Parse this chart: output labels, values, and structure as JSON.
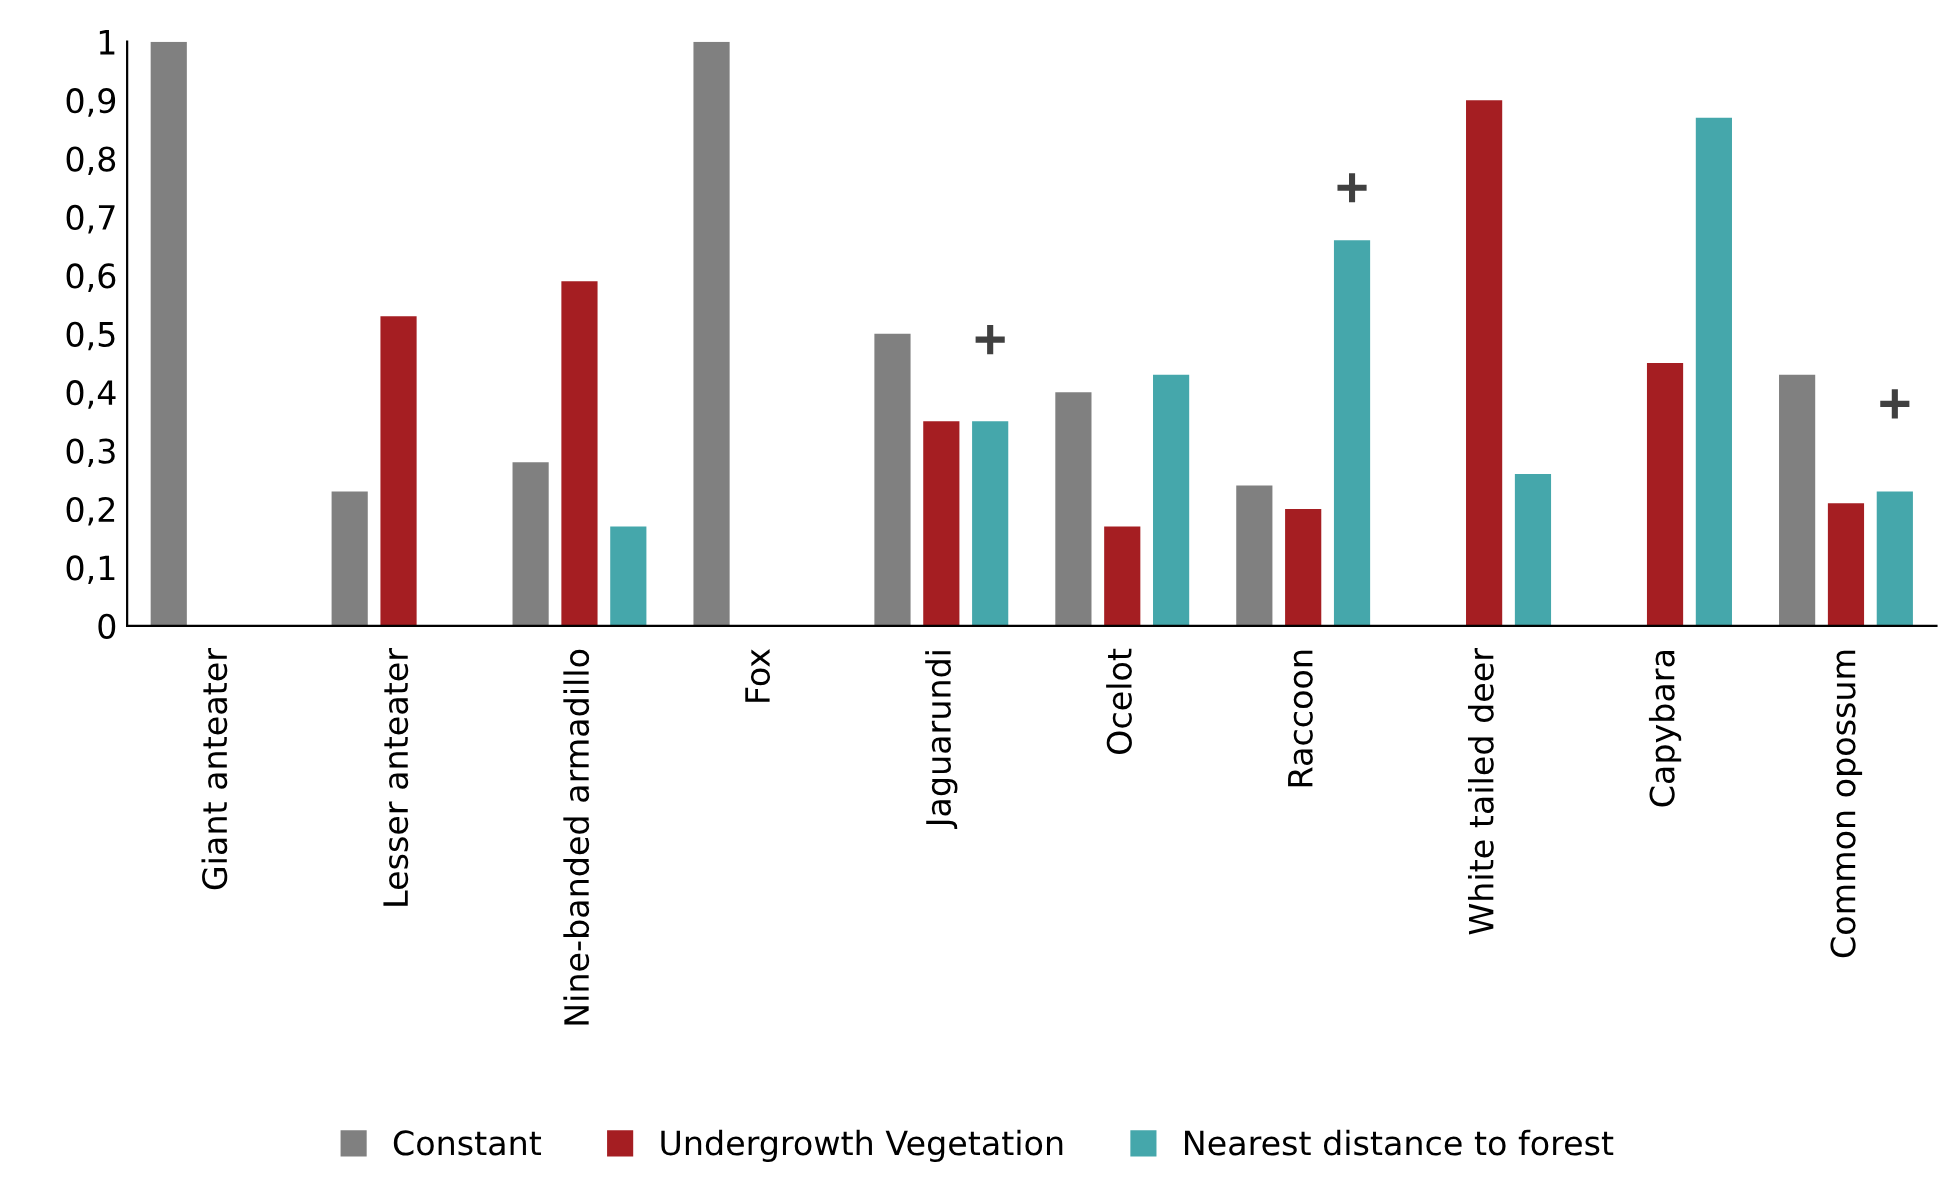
{
  "chart_data": {
    "type": "bar",
    "categories": [
      "Giant anteater",
      "Lesser anteater",
      "Nine-banded armadillo",
      "Fox",
      "Jaguarundi",
      "Ocelot",
      "Raccoon",
      "White tailed deer",
      "Capybara",
      "Common opossum"
    ],
    "series": [
      {
        "name": "Constant",
        "color": "#808080",
        "values": [
          1,
          0.23,
          0.28,
          1,
          0.5,
          0.4,
          0.24,
          null,
          null,
          0.43
        ]
      },
      {
        "name": "Undergrowth Vegetation",
        "color": "#a51e22",
        "values": [
          null,
          0.53,
          0.59,
          null,
          0.35,
          0.17,
          0.2,
          0.9,
          0.45,
          0.21
        ]
      },
      {
        "name": "Nearest distance to forest",
        "color": "#45a7ab",
        "values": [
          null,
          null,
          0.17,
          null,
          0.35,
          0.43,
          0.66,
          0.26,
          0.87,
          0.23
        ]
      },
      {
        "type": "scatter",
        "marker": "cross",
        "color": "#404040",
        "x": [
          "Jaguarundi",
          "Raccoon",
          "Common opossum"
        ],
        "values": [
          0.49,
          0.75,
          0.38
        ]
      }
    ],
    "ylim": [
      0,
      1
    ],
    "yticks": [
      0,
      {
        "value": 0.1,
        "label": "0,1"
      },
      {
        "value": 0.2,
        "label": "0,2"
      },
      {
        "value": 0.3,
        "label": "0,3"
      },
      {
        "value": 0.4,
        "label": "0,4"
      },
      {
        "value": 0.5,
        "label": "0,5"
      },
      {
        "value": 0.6,
        "label": "0,6"
      },
      {
        "value": 0.7,
        "label": "0,7"
      },
      {
        "value": 0.8,
        "label": "0,8"
      },
      {
        "value": 0.9,
        "label": "0,9"
      },
      1
    ],
    "grid": false,
    "legend": "bottom"
  }
}
